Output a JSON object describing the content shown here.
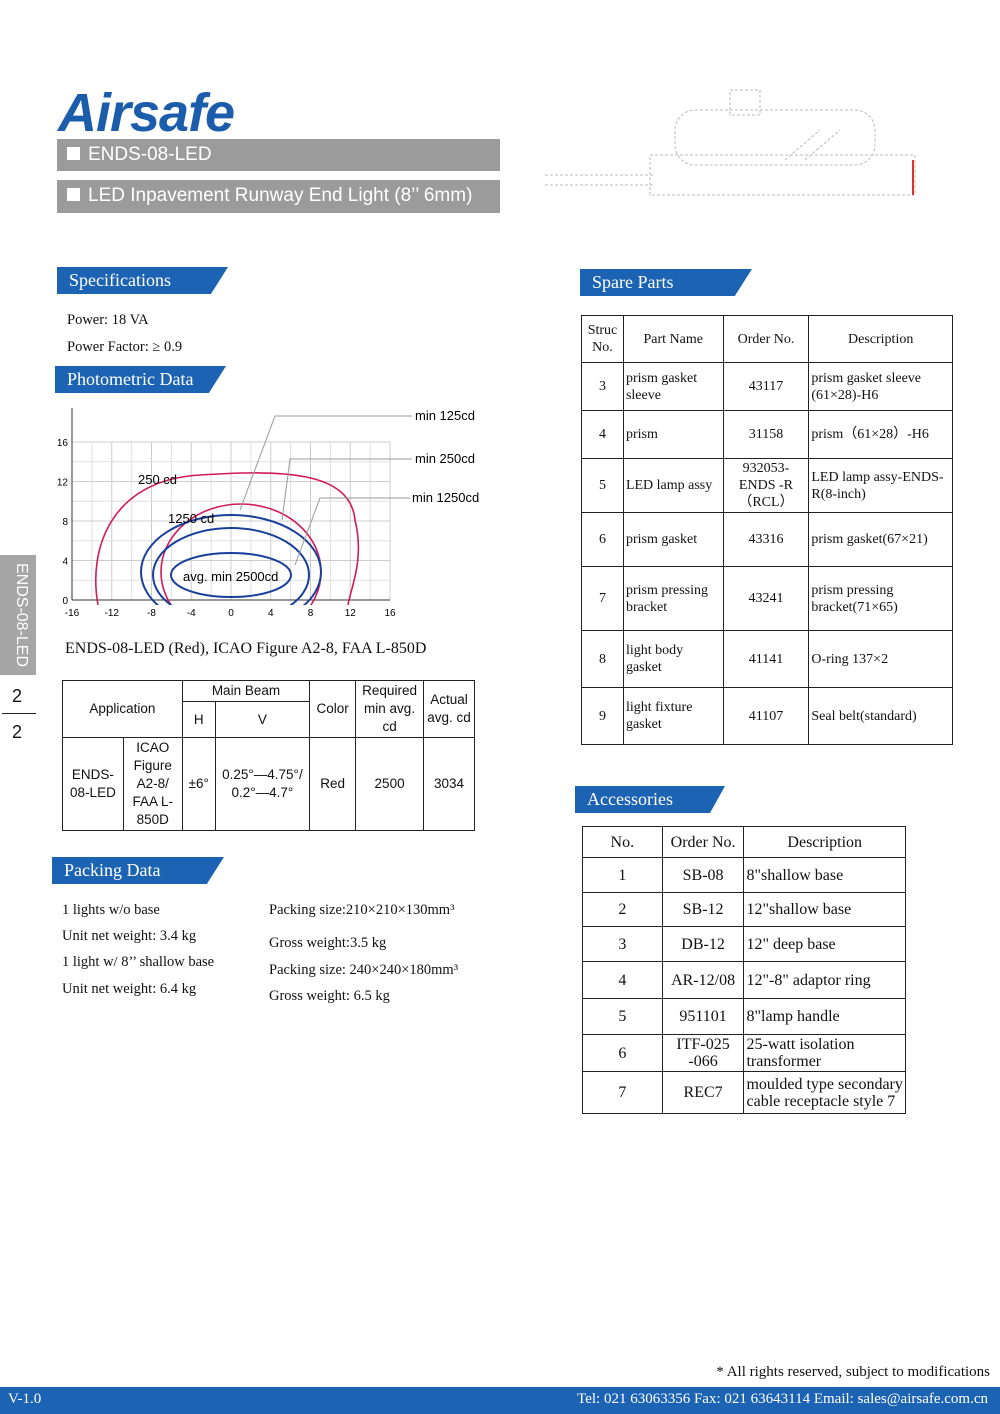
{
  "header": {
    "logo": "Airsafe",
    "model": "ENDS-08-LED",
    "product": "LED Inpavement Runway End Light (8’’ 6mm)"
  },
  "side_tab": {
    "label": "ENDS-08-LED",
    "page": "2",
    "total": "2"
  },
  "specifications": {
    "title": "Specifications",
    "items": [
      "Power: 18 VA",
      "Power Factor: ≥ 0.9"
    ]
  },
  "photometric": {
    "title": "Photometric Data",
    "xticks": [
      -16,
      -12,
      -8,
      -4,
      0,
      4,
      8,
      12,
      16
    ],
    "yticks": [
      0,
      4,
      8,
      12,
      16
    ],
    "curve_labels": [
      "250 cd",
      "1250 cd",
      "avg. min 2500cd"
    ],
    "legend": [
      "min 125cd",
      "min 250cd",
      "min 1250cd"
    ],
    "caption": "ENDS-08-LED (Red), ICAO Figure A2-8, FAA L-850D"
  },
  "photometric_table": {
    "application": "Application",
    "main_beam": "Main Beam",
    "h": "H",
    "v": "V",
    "color": "Color",
    "required": "Required min avg. cd",
    "actual": "Actual avg. cd",
    "row": [
      "ENDS-08-LED",
      "ICAO Figure A2-8/ FAA L-850D",
      "±6°",
      "0.25°—4.75°/ 0.2°—4.7°",
      "Red",
      "2500",
      "3034"
    ]
  },
  "packing": {
    "title": "Packing Data",
    "left": [
      "1 lights w/o  base",
      "Unit net weight: 3.4 kg",
      "1 light w/ 8’’ shallow base",
      "Unit net weight: 6.4 kg"
    ],
    "right": [
      "Packing size:210×210×130mm³",
      "Gross weight:3.5 kg",
      "Packing size: 240×240×180mm³",
      "Gross weight: 6.5 kg"
    ]
  },
  "spare_parts": {
    "title": "Spare Parts",
    "columns": [
      "Struc No.",
      "Part Name",
      "Order No.",
      "Description"
    ],
    "rows": [
      [
        "3",
        "prism gasket sleeve",
        "43117",
        "prism gasket sleeve (61×28)-H6"
      ],
      [
        "4",
        "prism",
        "31158",
        "prism（61×28）-H6"
      ],
      [
        "5",
        "LED lamp assy",
        "932053-ENDS -R（RCL）",
        "LED lamp assy-ENDS-R(8-inch)"
      ],
      [
        "6",
        "prism gasket",
        "43316",
        "prism gasket(67×21)"
      ],
      [
        "7",
        "prism pressing bracket",
        "43241",
        "prism pressing bracket(71×65)"
      ],
      [
        "8",
        "light body gasket",
        "41141",
        "O-ring 137×2"
      ],
      [
        "9",
        "light fixture gasket",
        "41107",
        "Seal belt(standard)"
      ]
    ]
  },
  "accessories": {
    "title": "Accessories",
    "columns": [
      "No.",
      "Order No.",
      "Description"
    ],
    "rows": [
      [
        "1",
        "SB-08",
        "8\"shallow base"
      ],
      [
        "2",
        "SB-12",
        "12\"shallow base"
      ],
      [
        "3",
        "DB-12",
        "12\" deep base"
      ],
      [
        "4",
        "AR-12/08",
        "12\"-8\" adaptor ring"
      ],
      [
        "5",
        "951101",
        "8\"lamp handle"
      ],
      [
        "6",
        "ITF-025 -066",
        "25-watt isolation transformer"
      ],
      [
        "7",
        "REC7",
        "moulded type secondary cable receptacle style 7"
      ]
    ]
  },
  "footer": {
    "note": "* All rights reserved, subject to modifications",
    "version": "V-1.0",
    "contact": "Tel: 021 63063356 Fax: 021 63643114 Email: sales@airsafe.com.cn"
  }
}
